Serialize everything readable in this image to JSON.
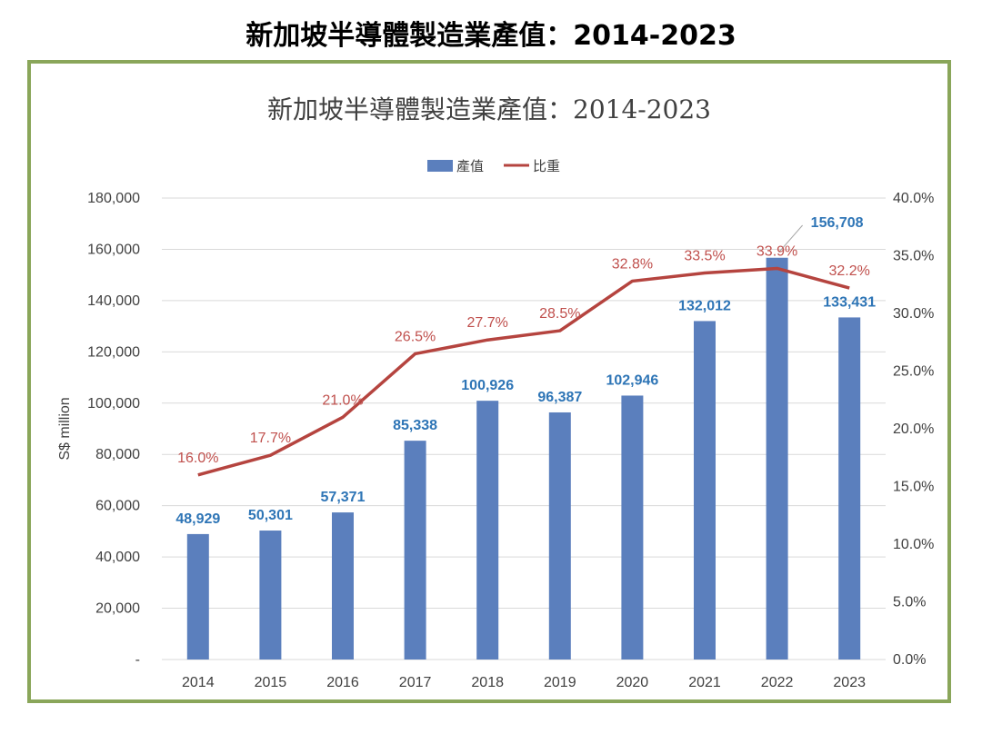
{
  "page_title": "新加坡半導體製造業產值：2014-2023",
  "chart_data": {
    "type": "bar",
    "title": "新加坡半導體製造業產值：2014-2023",
    "categories": [
      "2014",
      "2015",
      "2016",
      "2017",
      "2018",
      "2019",
      "2020",
      "2021",
      "2022",
      "2023"
    ],
    "series": [
      {
        "name": "產值",
        "type": "bar",
        "axis": "left",
        "color": "#5b7fbd",
        "values": [
          48929,
          50301,
          57371,
          85338,
          100926,
          96387,
          102946,
          132012,
          156708,
          133431
        ],
        "labels": [
          "48,929",
          "50,301",
          "57,371",
          "85,338",
          "100,926",
          "96,387",
          "102,946",
          "132,012",
          "156,708",
          "133,431"
        ]
      },
      {
        "name": "比重",
        "type": "line",
        "axis": "right",
        "color": "#b5443f",
        "values": [
          16.0,
          17.7,
          21.0,
          26.5,
          27.7,
          28.5,
          32.8,
          33.5,
          33.9,
          32.2
        ],
        "labels": [
          "16.0%",
          "17.7%",
          "21.0%",
          "26.5%",
          "27.7%",
          "28.5%",
          "32.8%",
          "33.5%",
          "33.9%",
          "32.2%"
        ]
      }
    ],
    "ylabel": "S$ million",
    "ylim": [
      0,
      180000
    ],
    "y_ticks": [
      "-",
      "20,000",
      "40,000",
      "60,000",
      "80,000",
      "100,000",
      "120,000",
      "140,000",
      "160,000",
      "180,000"
    ],
    "y2lim": [
      0,
      40
    ],
    "y2_ticks": [
      "0.0%",
      "5.0%",
      "10.0%",
      "15.0%",
      "20.0%",
      "25.0%",
      "30.0%",
      "35.0%",
      "40.0%"
    ],
    "grid": true,
    "legend": "top-center"
  }
}
